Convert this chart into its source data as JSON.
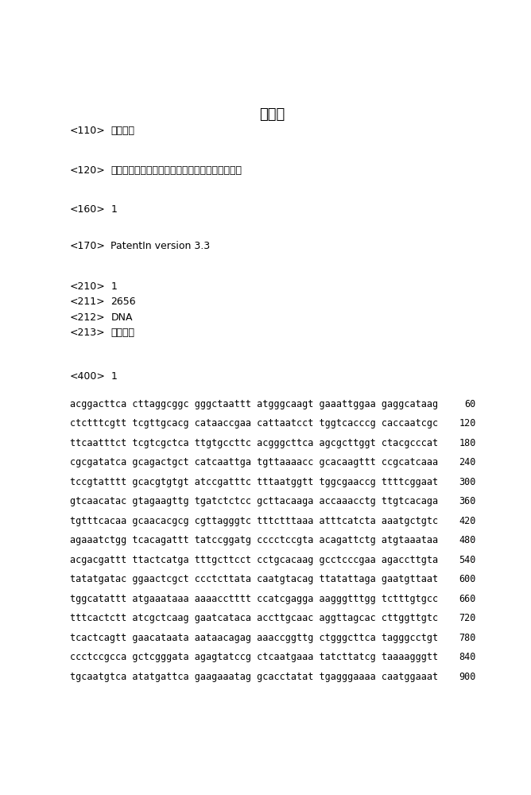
{
  "title": "序列表",
  "header_entries": [
    {
      "tag": "<110>",
      "value": "江南大学"
    },
    {
      "tag": "<120>",
      "value": "一种高效合成乙酰氨基葡萄糖的重组枯草芽孢杆菌"
    },
    {
      "tag": "<160>",
      "value": "1"
    },
    {
      "tag": "<170>",
      "value": "PatentIn version 3.3"
    },
    {
      "tag": "<210>",
      "value": "1"
    },
    {
      "tag": "<211>",
      "value": "2656"
    },
    {
      "tag": "<212>",
      "value": "DNA"
    },
    {
      "tag": "<213>",
      "value": "人工合成"
    },
    {
      "tag": "<400>",
      "value": "1"
    }
  ],
  "sequence_lines": [
    {
      "seq": "acggacttca cttaggcggc gggctaattt atgggcaagt gaaattggaa gaggcataag",
      "num": "60"
    },
    {
      "seq": "ctctttcgtt tcgttgcacg cataaccgaa cattaatcct tggtcacccg caccaatcgc",
      "num": "120"
    },
    {
      "seq": "ttcaatttct tcgtcgctca ttgtgccttc acgggcttca agcgcttggt ctacgcccat",
      "num": "180"
    },
    {
      "seq": "cgcgatatca gcagactgct catcaattga tgttaaaacc gcacaagttt ccgcatcaaa",
      "num": "240"
    },
    {
      "seq": "tccgtatttt gcacgtgtgt atccgatttc tttaatggtt tggcgaaccg ttttcggaat",
      "num": "300"
    },
    {
      "seq": "gtcaacatac gtagaagttg tgatctctcc gcttacaaga accaaacctg ttgtcacaga",
      "num": "360"
    },
    {
      "seq": "tgtttcacaa gcaacacgcg cgttagggtc tttctttaaa atttcatcta aaatgctgtc",
      "num": "420"
    },
    {
      "seq": "agaaatctgg tcacagattt tatccggatg cccctccgta acagattctg atgtaaataa",
      "num": "480"
    },
    {
      "seq": "acgacgattt ttactcatga tttgcttcct cctgcacaag gcctcccgaa agaccttgta",
      "num": "540"
    },
    {
      "seq": "tatatgatac ggaactcgct ccctcttata caatgtacag ttatattaga gaatgttaat",
      "num": "600"
    },
    {
      "seq": "tggcatattt atgaaataaa aaaacctttt ccatcgagga aagggtttgg tctttgtgcc",
      "num": "660"
    },
    {
      "seq": "tttcactctt atcgctcaag gaatcataca accttgcaac aggttagcac cttggttgtc",
      "num": "720"
    },
    {
      "seq": "tcactcagtt gaacataata aataacagag aaaccggttg ctgggcttca tagggcctgt",
      "num": "780"
    },
    {
      "seq": "ccctccgcca gctcgggata agagtatccg ctcaatgaaa tatcttatcg taaaagggtt",
      "num": "840"
    },
    {
      "seq": "tgcaatgtca atatgattca gaagaaatag gcacctatat tgagggaaaa caatggaaat",
      "num": "900"
    }
  ],
  "bg_color": "#ffffff",
  "text_color": "#000000",
  "title_fontsize": 13,
  "body_fontsize": 9,
  "tag_fontsize": 9,
  "seq_fontsize": 8.5,
  "num_fontsize": 8.5
}
